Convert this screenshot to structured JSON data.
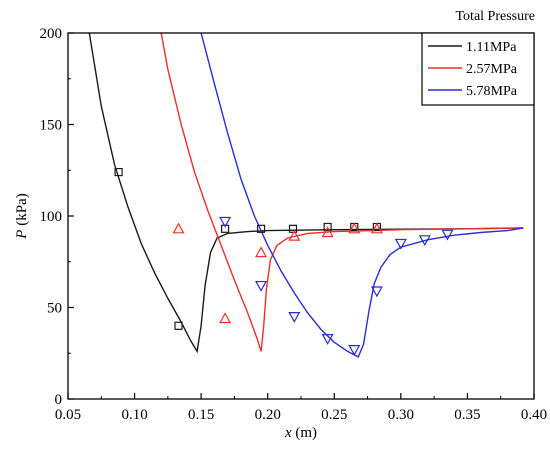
{
  "chart_data": {
    "type": "line",
    "legend_title": "Total Pressure",
    "legend_placement": "top-right",
    "xlabel_var": "x",
    "xlabel_unit": " (m)",
    "ylabel_var": "P",
    "ylabel_unit": " (kPa)",
    "xlim": [
      0.05,
      0.4
    ],
    "ylim": [
      0,
      200
    ],
    "xticks": [
      "0.05",
      "0.10",
      "0.15",
      "0.20",
      "0.25",
      "0.30",
      "0.35",
      "0.40"
    ],
    "yticks": [
      "0",
      "50",
      "100",
      "150",
      "200"
    ],
    "grid": false,
    "series": [
      {
        "name": "1.11MPa",
        "color": "#1a1a1a",
        "marker": "square",
        "line": [
          [
            0.066,
            200
          ],
          [
            0.075,
            160
          ],
          [
            0.085,
            128
          ],
          [
            0.095,
            105
          ],
          [
            0.105,
            85
          ],
          [
            0.115,
            69
          ],
          [
            0.125,
            55
          ],
          [
            0.135,
            42
          ],
          [
            0.142,
            32
          ],
          [
            0.147,
            26
          ],
          [
            0.15,
            40
          ],
          [
            0.153,
            62
          ],
          [
            0.157,
            80
          ],
          [
            0.162,
            88
          ],
          [
            0.17,
            90.5
          ],
          [
            0.185,
            91.5
          ],
          [
            0.2,
            92
          ],
          [
            0.25,
            92.5
          ],
          [
            0.3,
            92.8
          ],
          [
            0.35,
            93
          ],
          [
            0.392,
            93.5
          ]
        ],
        "points": [
          [
            0.088,
            124
          ],
          [
            0.133,
            40
          ],
          [
            0.168,
            93
          ],
          [
            0.195,
            93
          ],
          [
            0.219,
            93
          ],
          [
            0.245,
            94
          ],
          [
            0.265,
            94
          ],
          [
            0.282,
            94
          ]
        ]
      },
      {
        "name": "2.57MPa",
        "color": "#e8302a",
        "marker": "triangle-up",
        "line": [
          [
            0.12,
            200
          ],
          [
            0.125,
            180
          ],
          [
            0.135,
            150
          ],
          [
            0.145,
            124
          ],
          [
            0.155,
            103
          ],
          [
            0.165,
            84
          ],
          [
            0.175,
            65
          ],
          [
            0.185,
            47
          ],
          [
            0.192,
            33
          ],
          [
            0.195,
            26
          ],
          [
            0.197,
            40
          ],
          [
            0.199,
            60
          ],
          [
            0.202,
            76
          ],
          [
            0.207,
            84
          ],
          [
            0.215,
            88
          ],
          [
            0.23,
            90.5
          ],
          [
            0.25,
            91.5
          ],
          [
            0.3,
            92.5
          ],
          [
            0.35,
            93
          ],
          [
            0.392,
            93.5
          ]
        ],
        "points": [
          [
            0.133,
            93
          ],
          [
            0.168,
            44
          ],
          [
            0.195,
            80
          ],
          [
            0.22,
            89
          ],
          [
            0.245,
            91
          ],
          [
            0.265,
            93
          ],
          [
            0.282,
            93
          ]
        ]
      },
      {
        "name": "5.78MPa",
        "color": "#2b2bd8",
        "marker": "triangle-down",
        "line": [
          [
            0.15,
            200
          ],
          [
            0.16,
            172
          ],
          [
            0.17,
            145
          ],
          [
            0.18,
            120
          ],
          [
            0.19,
            100
          ],
          [
            0.2,
            84
          ],
          [
            0.21,
            70
          ],
          [
            0.22,
            58
          ],
          [
            0.23,
            47
          ],
          [
            0.24,
            38
          ],
          [
            0.25,
            31
          ],
          [
            0.26,
            26
          ],
          [
            0.268,
            23
          ],
          [
            0.272,
            30
          ],
          [
            0.276,
            48
          ],
          [
            0.28,
            63
          ],
          [
            0.285,
            72
          ],
          [
            0.292,
            79
          ],
          [
            0.3,
            83
          ],
          [
            0.32,
            87
          ],
          [
            0.34,
            89.5
          ],
          [
            0.36,
            91
          ],
          [
            0.38,
            92
          ],
          [
            0.392,
            93.5
          ]
        ],
        "points": [
          [
            0.168,
            97
          ],
          [
            0.195,
            62
          ],
          [
            0.22,
            45
          ],
          [
            0.245,
            33
          ],
          [
            0.265,
            27
          ],
          [
            0.282,
            59
          ],
          [
            0.3,
            85
          ],
          [
            0.318,
            87
          ],
          [
            0.335,
            90
          ]
        ]
      }
    ]
  }
}
